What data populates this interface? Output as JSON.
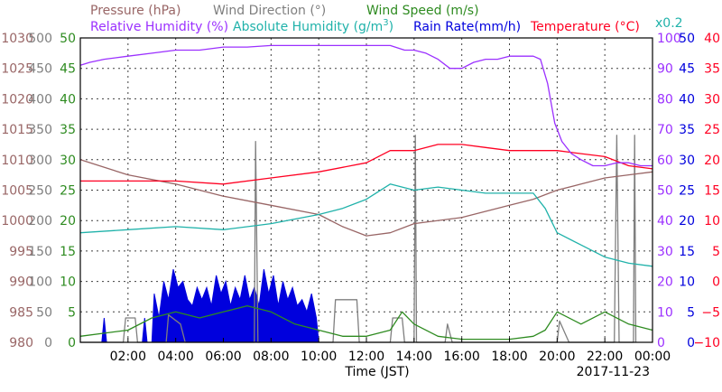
{
  "colors": {
    "pressure": "#996666",
    "wind_dir": "#7f7f7f",
    "wind_speed": "#2e8b20",
    "rel_hum": "#9b30ff",
    "abs_hum": "#20b2aa",
    "rain": "#0000dd",
    "temp": "#ff0022"
  },
  "chart_data": {
    "type": "line",
    "date_label": "2017-11-23",
    "xlabel": "Time (JST)",
    "x_ticks": [
      "02:00",
      "04:00",
      "06:00",
      "08:00",
      "10:00",
      "12:00",
      "14:00",
      "16:00",
      "18:00",
      "20:00",
      "22:00",
      "00:00"
    ],
    "legend": {
      "pressure": "Pressure (hPa)",
      "wind_dir": "Wind Direction (°)",
      "wind_speed": "Wind Speed (m/s)",
      "rel_hum": "Relative Humidity (%)",
      "abs_hum_prefix": "Absolute Humidity (g/m",
      "abs_hum_sup": "3",
      "abs_hum_suffix": ")",
      "rain": "Rain Rate(mm/h)",
      "temp": "Temperature (°C)",
      "scale_note": "x0.2"
    },
    "axes": {
      "pressure": {
        "unit": "hPa",
        "range": [
          980,
          1030
        ],
        "ticks": [
          "1030",
          "1025",
          "1020",
          "1015",
          "1010",
          "1005",
          "1000",
          "995",
          "990",
          "985",
          "980"
        ]
      },
      "wind_dir": {
        "unit": "°",
        "range": [
          0,
          500
        ],
        "ticks": [
          "500",
          "450",
          "400",
          "350",
          "300",
          "250",
          "200",
          "150",
          "100",
          "50",
          "0"
        ]
      },
      "wind_speed": {
        "unit": "m/s",
        "range": [
          0,
          50
        ],
        "ticks": [
          "50",
          "45",
          "40",
          "35",
          "30",
          "25",
          "20",
          "15",
          "10",
          "5",
          "0"
        ]
      },
      "rel_hum": {
        "unit": "%",
        "range": [
          0,
          100
        ],
        "ticks": [
          "100",
          "90",
          "80",
          "70",
          "60",
          "50",
          "40",
          "30",
          "20",
          "10",
          "0"
        ]
      },
      "rain": {
        "unit": "mm/h",
        "range": [
          0,
          50
        ],
        "ticks": [
          "50",
          "45",
          "40",
          "35",
          "30",
          "25",
          "20",
          "15",
          "10",
          "5",
          "0"
        ]
      },
      "temp": {
        "unit": "°C",
        "range": [
          -10,
          40
        ],
        "ticks": [
          "40",
          "35",
          "30",
          "25",
          "20",
          "15",
          "10",
          "5",
          "0",
          "−5",
          "−10"
        ]
      }
    },
    "grid": true,
    "series": [
      {
        "name": "Relative Humidity",
        "key": "rel_hum",
        "axis": "rel_hum",
        "style": "line",
        "points": [
          [
            0.0,
            91
          ],
          [
            0.4,
            92
          ],
          [
            1,
            93
          ],
          [
            2,
            94
          ],
          [
            3,
            95
          ],
          [
            4,
            96
          ],
          [
            5,
            96
          ],
          [
            6,
            97
          ],
          [
            7,
            97
          ],
          [
            8,
            97.5
          ],
          [
            9,
            97.5
          ],
          [
            10,
            97.5
          ],
          [
            11,
            97.5
          ],
          [
            12,
            97.5
          ],
          [
            13,
            97.5
          ],
          [
            13.6,
            96
          ],
          [
            14,
            96
          ],
          [
            14.5,
            95
          ],
          [
            15,
            93
          ],
          [
            15.5,
            90
          ],
          [
            16,
            90
          ],
          [
            16.5,
            92
          ],
          [
            17,
            93
          ],
          [
            17.5,
            93
          ],
          [
            18,
            94
          ],
          [
            18.5,
            94
          ],
          [
            19,
            94
          ],
          [
            19.3,
            93
          ],
          [
            19.6,
            85
          ],
          [
            19.9,
            72
          ],
          [
            20.2,
            66
          ],
          [
            20.6,
            62
          ],
          [
            21,
            60
          ],
          [
            21.5,
            58
          ],
          [
            22,
            58
          ],
          [
            22.5,
            59
          ],
          [
            23,
            59
          ],
          [
            23.5,
            58
          ],
          [
            24,
            58
          ]
        ]
      },
      {
        "name": "Absolute Humidity",
        "key": "abs_hum",
        "axis": "wind_speed",
        "style": "line",
        "points": [
          [
            0,
            18
          ],
          [
            2,
            18.5
          ],
          [
            4,
            19
          ],
          [
            6,
            18.5
          ],
          [
            8,
            19.5
          ],
          [
            10,
            21
          ],
          [
            11,
            22
          ],
          [
            12,
            23.5
          ],
          [
            13,
            26
          ],
          [
            13.5,
            25.5
          ],
          [
            14,
            25
          ],
          [
            15,
            25.5
          ],
          [
            16,
            25
          ],
          [
            17,
            24.5
          ],
          [
            18,
            24.5
          ],
          [
            19,
            24.5
          ],
          [
            19.5,
            22
          ],
          [
            20,
            18
          ],
          [
            21,
            16
          ],
          [
            22,
            14
          ],
          [
            23,
            13
          ],
          [
            24,
            12.5
          ]
        ]
      },
      {
        "name": "Temperature",
        "key": "temp",
        "axis": "temp",
        "style": "line",
        "points": [
          [
            0,
            16.5
          ],
          [
            2,
            16.5
          ],
          [
            4,
            16.5
          ],
          [
            6,
            16
          ],
          [
            8,
            17
          ],
          [
            10,
            18
          ],
          [
            12,
            19.5
          ],
          [
            13,
            21.5
          ],
          [
            14,
            21.5
          ],
          [
            15,
            22.5
          ],
          [
            16,
            22.5
          ],
          [
            17,
            22
          ],
          [
            18,
            21.5
          ],
          [
            19,
            21.5
          ],
          [
            20,
            21.5
          ],
          [
            21,
            21
          ],
          [
            22,
            20.5
          ],
          [
            23,
            19
          ],
          [
            24,
            18.5
          ]
        ]
      },
      {
        "name": "Pressure",
        "key": "pressure",
        "axis": "pressure",
        "style": "line",
        "points": [
          [
            0,
            1010
          ],
          [
            2,
            1007.5
          ],
          [
            4,
            1006
          ],
          [
            6,
            1004
          ],
          [
            8,
            1002.5
          ],
          [
            10,
            1001
          ],
          [
            11,
            999
          ],
          [
            12,
            997.5
          ],
          [
            13,
            998
          ],
          [
            14,
            999.5
          ],
          [
            16,
            1000.5
          ],
          [
            18,
            1002.5
          ],
          [
            19,
            1003.5
          ],
          [
            20,
            1005
          ],
          [
            21,
            1006
          ],
          [
            22,
            1007
          ],
          [
            23,
            1007.5
          ],
          [
            24,
            1008
          ]
        ]
      },
      {
        "name": "Wind Direction",
        "key": "wind_dir",
        "axis": "wind_dir",
        "style": "line",
        "points": [
          [
            0,
            0
          ],
          [
            1.8,
            0
          ],
          [
            1.9,
            40
          ],
          [
            2.3,
            40
          ],
          [
            2.4,
            0
          ],
          [
            3.6,
            0
          ],
          [
            3.7,
            45
          ],
          [
            4.2,
            30
          ],
          [
            4.4,
            0
          ],
          [
            7.3,
            0
          ],
          [
            7.35,
            330
          ],
          [
            7.45,
            0
          ],
          [
            10.6,
            0
          ],
          [
            10.7,
            70
          ],
          [
            11.6,
            70
          ],
          [
            11.7,
            0
          ],
          [
            13,
            0
          ],
          [
            13.1,
            40
          ],
          [
            13.5,
            40
          ],
          [
            13.6,
            0
          ],
          [
            14.0,
            0
          ],
          [
            14.05,
            340
          ],
          [
            14.1,
            0
          ],
          [
            15.3,
            0
          ],
          [
            15.4,
            30
          ],
          [
            15.6,
            0
          ],
          [
            20,
            0
          ],
          [
            20.1,
            35
          ],
          [
            20.5,
            0
          ],
          [
            22.4,
            0
          ],
          [
            22.5,
            340
          ],
          [
            22.6,
            0
          ],
          [
            23.2,
            0
          ],
          [
            23.25,
            340
          ],
          [
            23.3,
            0
          ]
        ]
      },
      {
        "name": "Wind Speed",
        "key": "wind_speed",
        "axis": "wind_speed",
        "style": "line",
        "points": [
          [
            0,
            1
          ],
          [
            1,
            1.5
          ],
          [
            2,
            2
          ],
          [
            3,
            4
          ],
          [
            4,
            5
          ],
          [
            5,
            4
          ],
          [
            6,
            5
          ],
          [
            7,
            6
          ],
          [
            8,
            5
          ],
          [
            9,
            3
          ],
          [
            10,
            2
          ],
          [
            11,
            1
          ],
          [
            12,
            1
          ],
          [
            13,
            2
          ],
          [
            13.5,
            5
          ],
          [
            14,
            3
          ],
          [
            15,
            1
          ],
          [
            16,
            0.5
          ],
          [
            17,
            0.5
          ],
          [
            18,
            0.5
          ],
          [
            19,
            1
          ],
          [
            19.5,
            2
          ],
          [
            20,
            5
          ],
          [
            21,
            3
          ],
          [
            22,
            5
          ],
          [
            23,
            3
          ],
          [
            24,
            2
          ]
        ]
      },
      {
        "name": "Rain Rate",
        "key": "rain",
        "axis": "rain",
        "style": "area",
        "points": [
          [
            0.9,
            0
          ],
          [
            1.0,
            4
          ],
          [
            1.1,
            0
          ],
          [
            2.6,
            0
          ],
          [
            2.7,
            4
          ],
          [
            2.8,
            0
          ],
          [
            3.0,
            0
          ],
          [
            3.1,
            8
          ],
          [
            3.3,
            4
          ],
          [
            3.5,
            10
          ],
          [
            3.7,
            7
          ],
          [
            3.9,
            12
          ],
          [
            4.1,
            9
          ],
          [
            4.3,
            10
          ],
          [
            4.5,
            7
          ],
          [
            4.7,
            6
          ],
          [
            4.9,
            9
          ],
          [
            5.1,
            7
          ],
          [
            5.3,
            9
          ],
          [
            5.5,
            6
          ],
          [
            5.7,
            11
          ],
          [
            5.9,
            8
          ],
          [
            6.1,
            10
          ],
          [
            6.3,
            6
          ],
          [
            6.5,
            9
          ],
          [
            6.7,
            7
          ],
          [
            6.9,
            11
          ],
          [
            7.1,
            7
          ],
          [
            7.3,
            9
          ],
          [
            7.5,
            6
          ],
          [
            7.7,
            12
          ],
          [
            7.9,
            8
          ],
          [
            8.1,
            11
          ],
          [
            8.3,
            6
          ],
          [
            8.5,
            10
          ],
          [
            8.7,
            7
          ],
          [
            8.9,
            9
          ],
          [
            9.1,
            6
          ],
          [
            9.3,
            7
          ],
          [
            9.5,
            5
          ],
          [
            9.7,
            8
          ],
          [
            9.9,
            4
          ],
          [
            10.0,
            0
          ]
        ]
      }
    ]
  }
}
